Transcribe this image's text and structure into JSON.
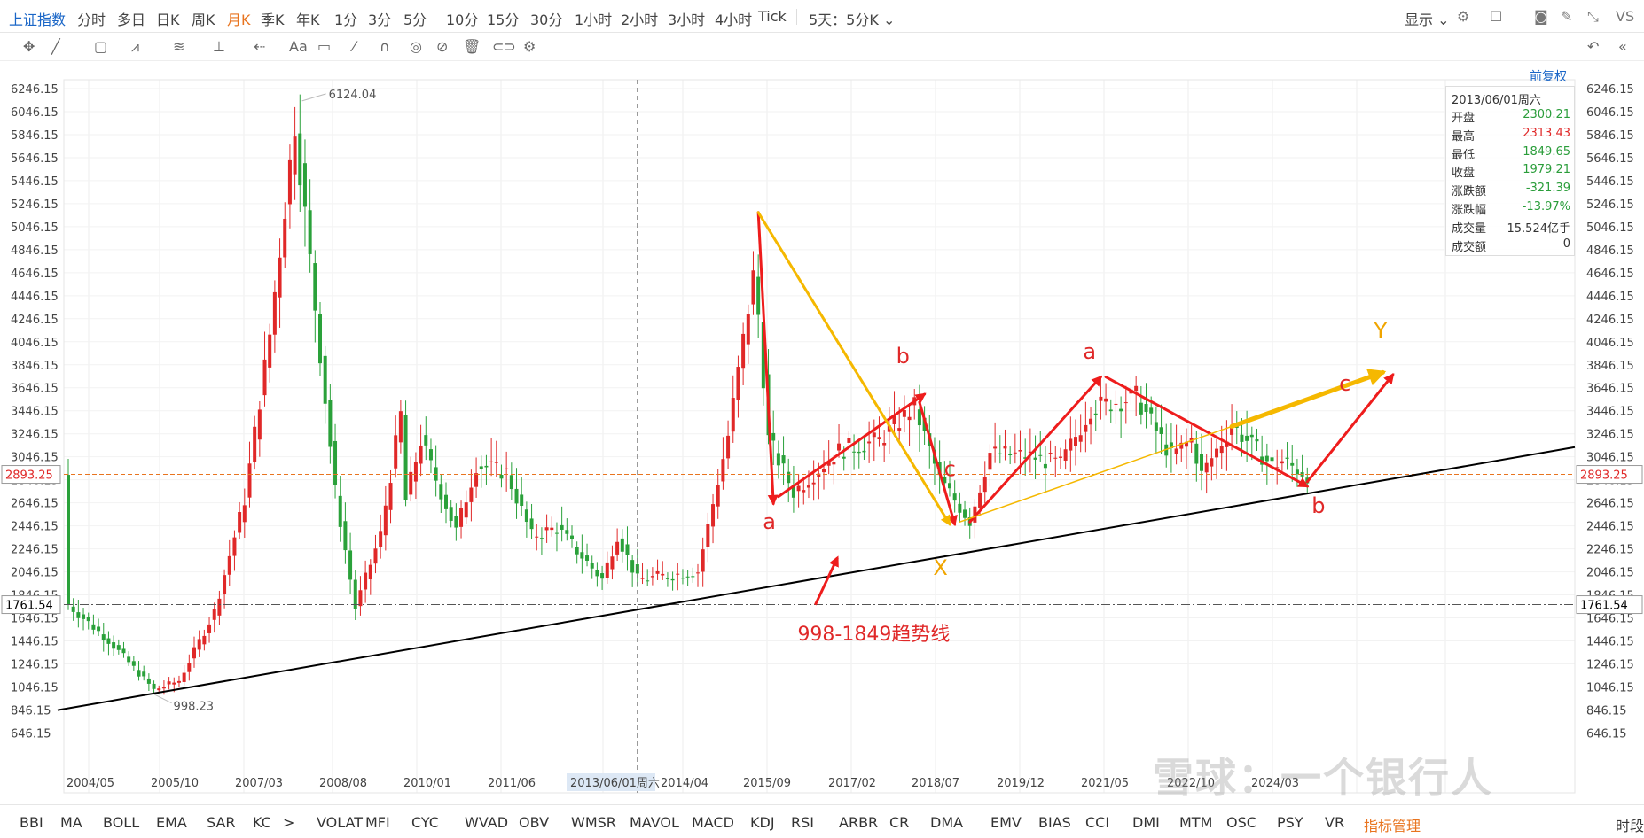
{
  "toolbar_top": {
    "title": "上证指数",
    "tabs": [
      "分时",
      "多日",
      "日K",
      "周K",
      "月K",
      "季K",
      "年K",
      "1分",
      "3分",
      "5分",
      "10分",
      "15分",
      "30分",
      "1小时",
      "2小时",
      "3小时",
      "4小时",
      "Tick",
      "5天：5分K"
    ],
    "active_tab": "月K",
    "right_label": "显示",
    "right_text": "VS"
  },
  "draw_tools": [
    "crosshair",
    "line",
    "rect",
    "polyline",
    "fib",
    "measure",
    "arrow",
    "text",
    "comment",
    "brush",
    "magnet",
    "eye",
    "hide",
    "trash",
    "link",
    "settings"
  ],
  "fuquan_label": "前复权",
  "info": {
    "date": "2013/06/01周六",
    "rows": [
      {
        "k": "开盘",
        "v": "2300.21",
        "c": "#2a9d3a"
      },
      {
        "k": "最高",
        "v": "2313.43",
        "c": "#e02828"
      },
      {
        "k": "最低",
        "v": "1849.65",
        "c": "#2a9d3a"
      },
      {
        "k": "收盘",
        "v": "1979.21",
        "c": "#2a9d3a"
      },
      {
        "k": "涨跌额",
        "v": "-321.39",
        "c": "#2a9d3a"
      },
      {
        "k": "涨跌幅",
        "v": "-13.97%",
        "c": "#2a9d3a"
      },
      {
        "k": "成交量",
        "v": "15.524亿手",
        "c": "#333"
      },
      {
        "k": "成交额",
        "v": "0",
        "c": "#333"
      }
    ]
  },
  "chart_data": {
    "type": "candlestick",
    "y_ticks": [
      6246.15,
      6046.15,
      5846.15,
      5646.15,
      5446.15,
      5246.15,
      5046.15,
      4846.15,
      4646.15,
      4446.15,
      4246.15,
      4046.15,
      3846.15,
      3646.15,
      3446.15,
      3246.15,
      3046.15,
      2846.15,
      2646.15,
      2446.15,
      2246.15,
      2046.15,
      1846.15,
      1646.15,
      1446.15,
      1246.15,
      1046.15,
      846.15,
      646.15
    ],
    "ylim": [
      560,
      6400
    ],
    "x_labels": [
      "2004/05",
      "2005/10",
      "2007/03",
      "2008/08",
      "2010/01",
      "2011/06",
      "2013/06/01周六",
      "2014/04",
      "2015/09",
      "2017/02",
      "2018/07",
      "2019/12",
      "2021/05",
      "2022/10",
      "2024/03"
    ],
    "current_price": "2893.25",
    "crosshair_price": "1761.54",
    "high_label": "6124.04",
    "low_label": "998.23",
    "anchors": [
      [
        "2004-01",
        1760
      ],
      [
        "2004-09",
        1450
      ],
      [
        "2005-06",
        1020
      ],
      [
        "2005-11",
        1100
      ],
      [
        "2006-06",
        1700
      ],
      [
        "2006-12",
        2675
      ],
      [
        "2007-05",
        4110
      ],
      [
        "2007-10",
        5955
      ],
      [
        "2008-02",
        4350
      ],
      [
        "2008-06",
        2740
      ],
      [
        "2008-10",
        1730
      ],
      [
        "2009-03",
        2370
      ],
      [
        "2009-07",
        3410
      ],
      [
        "2009-08",
        2670
      ],
      [
        "2009-11",
        3190
      ],
      [
        "2010-06",
        2400
      ],
      [
        "2010-10",
        2980
      ],
      [
        "2011-04",
        2910
      ],
      [
        "2011-09",
        2360
      ],
      [
        "2012-02",
        2430
      ],
      [
        "2012-11",
        1980
      ],
      [
        "2013-02",
        2370
      ],
      [
        "2013-06",
        1979
      ],
      [
        "2014-06",
        2050
      ],
      [
        "2014-12",
        3230
      ],
      [
        "2015-05",
        4610
      ],
      [
        "2015-06",
        4280
      ],
      [
        "2015-08",
        3200
      ],
      [
        "2016-01",
        2740
      ],
      [
        "2016-10",
        3100
      ],
      [
        "2017-06",
        3190
      ],
      [
        "2018-01",
        3480
      ],
      [
        "2018-06",
        2850
      ],
      [
        "2018-12",
        2490
      ],
      [
        "2019-04",
        3080
      ],
      [
        "2019-12",
        3050
      ],
      [
        "2020-06",
        2980
      ],
      [
        "2020-12",
        3470
      ],
      [
        "2021-09",
        3570
      ],
      [
        "2022-04",
        3050
      ],
      [
        "2022-08",
        3200
      ],
      [
        "2022-10",
        2890
      ],
      [
        "2023-04",
        3320
      ],
      [
        "2023-12",
        2970
      ],
      [
        "2024-02",
        3010
      ],
      [
        "2024-07",
        2890
      ]
    ],
    "trendline": {
      "points": [
        [
          "2004-01",
          860
        ],
        [
          "2023-06",
          2900
        ],
        [
          "2024-12",
          3130
        ]
      ]
    },
    "annotations": [
      {
        "text": "a",
        "color": "#e02828"
      },
      {
        "text": "b",
        "color": "#e02828"
      },
      {
        "text": "c",
        "color": "#e02828"
      },
      {
        "text": "X",
        "color": "#f0a500"
      },
      {
        "text": "a",
        "color": "#e02828"
      },
      {
        "text": "Y",
        "color": "#f0a500"
      },
      {
        "text": "c",
        "color": "#e02828"
      },
      {
        "text": "b",
        "color": "#e02828"
      },
      {
        "text": "998-1849趋势线",
        "color": "#e02828"
      }
    ],
    "colors": {
      "up": "#e02828",
      "down": "#2aa13a",
      "trend": "#000000",
      "yellow": "#f5b800",
      "red": "#ee1c1c",
      "orange_line": "#e8741f"
    }
  },
  "indicators": [
    "BBI",
    "MA",
    "BOLL",
    "EMA",
    "SAR",
    "KC",
    ">",
    "VOLAT",
    "MFI",
    "CYC",
    "WVAD",
    "OBV",
    "WMSR",
    "MAVOL",
    "MACD",
    "KDJ",
    "RSI",
    "ARBR",
    "CR",
    "DMA",
    "EMV",
    "BIAS",
    "CCI",
    "DMI",
    "MTM",
    "OSC",
    "PSY",
    "VR",
    "指标管理",
    "时段"
  ],
  "watermark": "雪球：一个银行人"
}
